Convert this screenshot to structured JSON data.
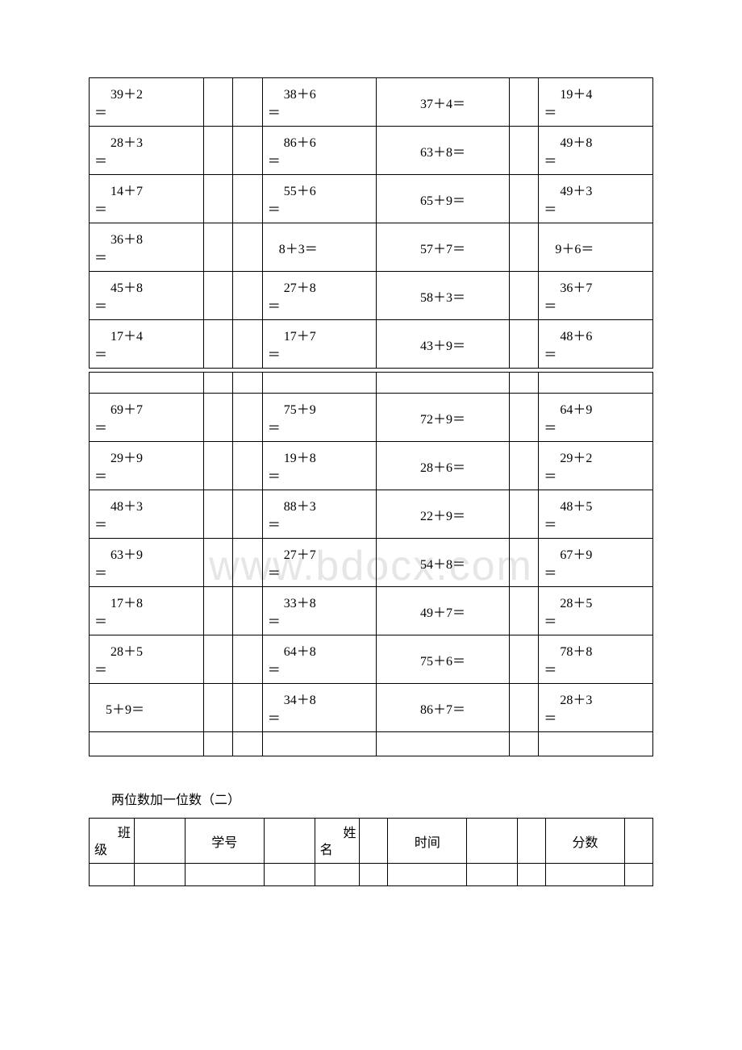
{
  "watermark": "www.bdocx.com",
  "table1": {
    "rows": [
      {
        "c1": "39＋2",
        "e1": "＝",
        "c2": "38＋6",
        "e2": "＝",
        "c3": "37＋4＝",
        "c4": "19＋4",
        "e4": "＝"
      },
      {
        "c1": "28＋3",
        "e1": "＝",
        "c2": "86＋6",
        "e2": "＝",
        "c3": "63＋8＝",
        "c4": "49＋8",
        "e4": "＝"
      },
      {
        "c1": "14＋7",
        "e1": "＝",
        "c2": "55＋6",
        "e2": "＝",
        "c3": "65＋9＝",
        "c4": "49＋3",
        "e4": "＝"
      },
      {
        "c1": "36＋8",
        "e1": "＝",
        "c2s": "8＋3＝",
        "c3": "57＋7＝",
        "c4s": "9＋6＝"
      },
      {
        "c1": "45＋8",
        "e1": "＝",
        "c2": "27＋8",
        "e2": "＝",
        "c3": "58＋3＝",
        "c4": "36＋7",
        "e4": "＝"
      },
      {
        "c1": "17＋4",
        "e1": "＝",
        "c2": "17＋7",
        "e2": "＝",
        "c3": "43＋9＝",
        "c4": "48＋6",
        "e4": "＝"
      }
    ]
  },
  "table2": {
    "rows": [
      {
        "c1": "69＋7",
        "e1": "＝",
        "c2": "75＋9",
        "e2": "＝",
        "c3": "72＋9＝",
        "c4": "64＋9",
        "e4": "＝"
      },
      {
        "c1": "29＋9",
        "e1": "＝",
        "c2": "19＋8",
        "e2": "＝",
        "c3": "28＋6＝",
        "c4": "29＋2",
        "e4": "＝"
      },
      {
        "c1": "48＋3",
        "e1": "＝",
        "c2": "88＋3",
        "e2": "＝",
        "c3": "22＋9＝",
        "c4": "48＋5",
        "e4": "＝"
      },
      {
        "c1": "63＋9",
        "e1": "＝",
        "c2": "27＋7",
        "e2": "＝",
        "c3": "54＋8＝",
        "c4": "67＋9",
        "e4": "＝"
      },
      {
        "c1": "17＋8",
        "e1": "＝",
        "c2": "33＋8",
        "e2": "＝",
        "c3": "49＋7＝",
        "c4": "28＋5",
        "e4": "＝"
      },
      {
        "c1": "28＋5",
        "e1": "＝",
        "c2": "64＋8",
        "e2": "＝",
        "c3": "75＋6＝",
        "c4": "78＋8",
        "e4": "＝"
      },
      {
        "c1s": "5＋9＝",
        "c2": "34＋8",
        "e2": "＝",
        "c3": "86＋7＝",
        "c4": "28＋3",
        "e4": "＝"
      }
    ]
  },
  "section_title": "两位数加一位数（二）",
  "info": {
    "col1_top": "班",
    "col1_bot": "级",
    "col2": "学号",
    "col3_top": "姓",
    "col3_bot": "名",
    "col4": "时间",
    "col5": "分数"
  },
  "colors": {
    "text": "#000000",
    "border": "#000000",
    "background": "#ffffff",
    "watermark": "#e6e6e6"
  }
}
